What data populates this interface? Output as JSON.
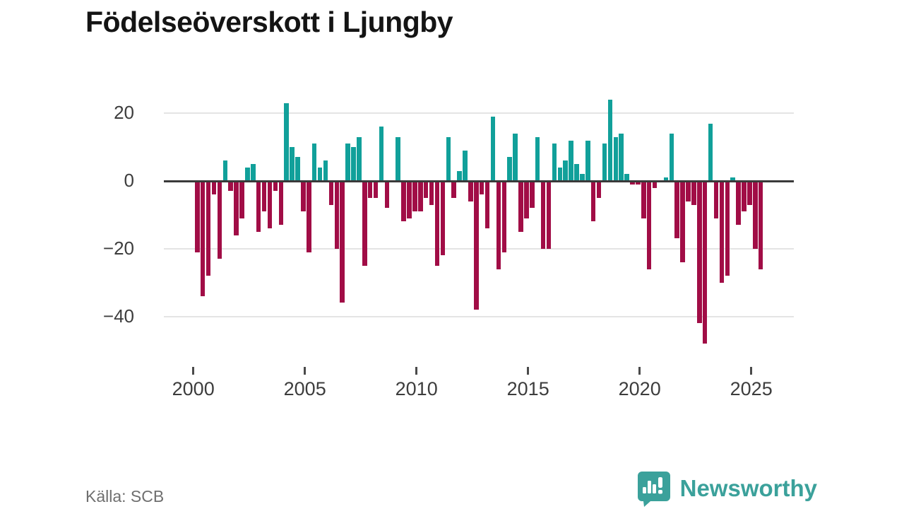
{
  "title": "Födelseöverskott i Ljungby",
  "source": "Källa: SCB",
  "logo": {
    "text": "Newsworthy",
    "color": "#3ba19b"
  },
  "colors": {
    "positive": "#11a09a",
    "negative": "#a10d46",
    "axis_line": "#3a3a3a",
    "gridline": "#e4e4e4",
    "tick_label": "#3d3d3d"
  },
  "chart_data": {
    "type": "bar",
    "title": "Födelseöverskott i Ljungby",
    "xlabel": "",
    "ylabel": "",
    "x_start": "2000-Q1",
    "x_end": "2025-Q2",
    "period": "quarterly",
    "ylim": [
      -50,
      26
    ],
    "grid": "horizontal",
    "y_ticks": [
      20,
      0,
      -20,
      -40
    ],
    "x_ticks": [
      2000,
      2005,
      2010,
      2015,
      2020,
      2025
    ],
    "values": [
      -21,
      -34,
      -28,
      -4,
      -23,
      6,
      -3,
      -16,
      -11,
      4,
      5,
      -15,
      -9,
      -14,
      -3,
      -13,
      23,
      10,
      7,
      -9,
      -21,
      11,
      4,
      6,
      -7,
      -20,
      -36,
      11,
      10,
      13,
      -25,
      -5,
      -5,
      16,
      -8,
      0,
      13,
      -12,
      -11,
      -9,
      -9,
      -5,
      -7,
      -25,
      -22,
      13,
      -5,
      3,
      9,
      -6,
      -38,
      -4,
      -14,
      19,
      -26,
      -21,
      7,
      14,
      -15,
      -11,
      -8,
      13,
      -20,
      -20,
      11,
      4,
      6,
      12,
      5,
      2,
      12,
      -12,
      -5,
      11,
      24,
      13,
      14,
      2,
      -1,
      -1,
      -11,
      -26,
      -2,
      0,
      1,
      14,
      -17,
      -24,
      -6,
      -7,
      -42,
      -48,
      17,
      -11,
      -30,
      -28,
      1,
      -13,
      -9,
      -7,
      -20,
      -26
    ]
  }
}
